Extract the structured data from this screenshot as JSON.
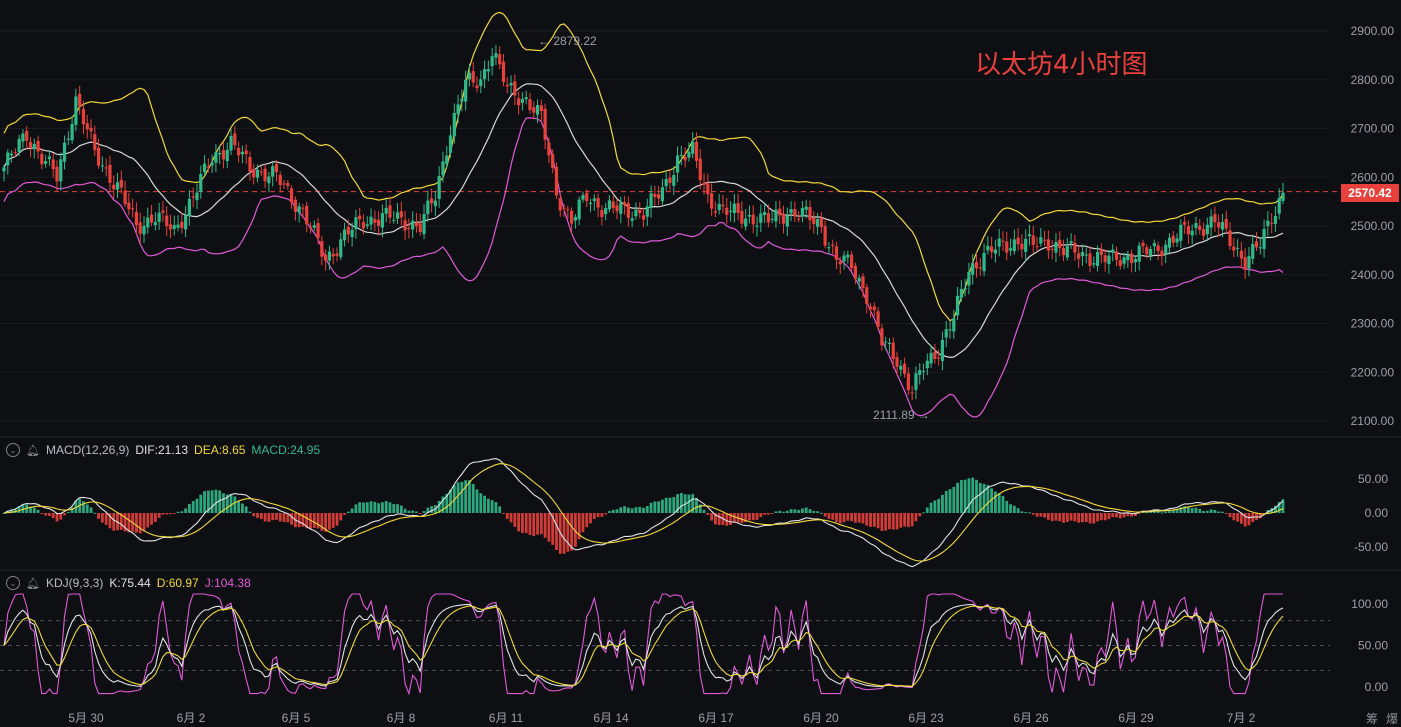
{
  "overlay_title": "以太坊4小时图",
  "price_axis": {
    "ticks": [
      "2900.00",
      "2800.00",
      "2700.00",
      "2600.00",
      "2500.00",
      "2400.00",
      "2300.00",
      "2200.00",
      "2100.00"
    ],
    "current_price": "2570.42",
    "high_annotation": "2879.22",
    "low_annotation": "2111.89"
  },
  "macd_pane": {
    "name": "MACD(12,26,9)",
    "dif": "DIF:21.13",
    "dea": "DEA:8.65",
    "macd": "MACD:24.95",
    "ticks": [
      "50.00",
      "0.00",
      "-50.00"
    ]
  },
  "kdj_pane": {
    "name": "KDJ(9,3,3)",
    "k": "K:75.44",
    "d": "D:60.97",
    "j": "J:104.38",
    "ticks": [
      "100.00",
      "50.00",
      "0.00"
    ]
  },
  "x_axis": {
    "labels": [
      "5月 30",
      "6月 2",
      "6月 5",
      "6月 8",
      "6月 11",
      "6月 14",
      "6月 17",
      "6月 20",
      "6月 23",
      "6月 26",
      "6月 29",
      "7月 2"
    ]
  },
  "corner_labels": [
    "筹",
    "爆"
  ],
  "colors": {
    "up": "#2fb98a",
    "down": "#e8413c",
    "upper_band": "#f0d83a",
    "mid_band": "#d8d8d8",
    "lower_band": "#e05ad8",
    "background": "#0e0f12"
  },
  "chart_data": {
    "type": "candlestick",
    "price_ylim": [
      2080,
      2940
    ],
    "anchors": [
      [
        0,
        2620
      ],
      [
        6,
        2690
      ],
      [
        10,
        2640
      ],
      [
        14,
        2600
      ],
      [
        19,
        2760
      ],
      [
        24,
        2650
      ],
      [
        30,
        2580
      ],
      [
        35,
        2500
      ],
      [
        40,
        2520
      ],
      [
        45,
        2490
      ],
      [
        50,
        2560
      ],
      [
        55,
        2640
      ],
      [
        60,
        2670
      ],
      [
        65,
        2620
      ],
      [
        72,
        2600
      ],
      [
        79,
        2530
      ],
      [
        85,
        2430
      ],
      [
        90,
        2480
      ],
      [
        95,
        2510
      ],
      [
        100,
        2520
      ],
      [
        106,
        2510
      ],
      [
        110,
        2500
      ],
      [
        114,
        2560
      ],
      [
        118,
        2700
      ],
      [
        122,
        2790
      ],
      [
        126,
        2800
      ],
      [
        129,
        2860
      ],
      [
        133,
        2780
      ],
      [
        138,
        2760
      ],
      [
        142,
        2720
      ],
      [
        146,
        2570
      ],
      [
        150,
        2510
      ],
      [
        154,
        2560
      ],
      [
        158,
        2540
      ],
      [
        164,
        2530
      ],
      [
        169,
        2530
      ],
      [
        174,
        2570
      ],
      [
        178,
        2640
      ],
      [
        182,
        2650
      ],
      [
        186,
        2560
      ],
      [
        190,
        2530
      ],
      [
        196,
        2520
      ],
      [
        202,
        2510
      ],
      [
        207,
        2530
      ],
      [
        212,
        2520
      ],
      [
        216,
        2500
      ],
      [
        220,
        2430
      ],
      [
        224,
        2420
      ],
      [
        228,
        2360
      ],
      [
        232,
        2260
      ],
      [
        236,
        2230
      ],
      [
        240,
        2160
      ],
      [
        243,
        2210
      ],
      [
        247,
        2250
      ],
      [
        251,
        2310
      ],
      [
        255,
        2410
      ],
      [
        259,
        2440
      ],
      [
        264,
        2460
      ],
      [
        268,
        2470
      ],
      [
        272,
        2460
      ],
      [
        276,
        2470
      ],
      [
        280,
        2450
      ],
      [
        286,
        2440
      ],
      [
        292,
        2430
      ],
      [
        298,
        2440
      ],
      [
        304,
        2450
      ],
      [
        310,
        2480
      ],
      [
        316,
        2500
      ],
      [
        320,
        2510
      ],
      [
        324,
        2470
      ],
      [
        328,
        2430
      ],
      [
        332,
        2460
      ],
      [
        335,
        2520
      ],
      [
        338,
        2570
      ]
    ]
  }
}
